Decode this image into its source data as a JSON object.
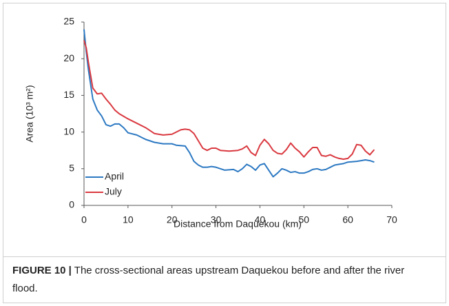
{
  "chart_data": {
    "type": "line",
    "x_label": "Distance from Daquekou (km)",
    "y_label": "Area (10³ m²)",
    "xlim": [
      0,
      70
    ],
    "xticks": [
      0,
      10,
      20,
      30,
      40,
      50,
      60,
      70
    ],
    "ylim": [
      0,
      25
    ],
    "yticks": [
      0,
      5,
      10,
      15,
      20,
      25
    ],
    "grid": false,
    "legend": "lower-left",
    "series": [
      {
        "name": "April",
        "color": "#2b78c2",
        "x": [
          0,
          0.5,
          1,
          2,
          3,
          4,
          5,
          6,
          7,
          8,
          9,
          10,
          12,
          14,
          16,
          18,
          20,
          21,
          23,
          24,
          25,
          26,
          27,
          28,
          29,
          30,
          32,
          34,
          35,
          36,
          37,
          38,
          39,
          40,
          41,
          42,
          43,
          44,
          45,
          46,
          47,
          48,
          49,
          50,
          51,
          52,
          53,
          54,
          55,
          56,
          57,
          58,
          59,
          60,
          62,
          63,
          64,
          65,
          66
        ],
        "values": [
          24,
          21,
          18.5,
          14.5,
          13,
          12.2,
          11,
          10.8,
          11.1,
          11.1,
          10.6,
          9.9,
          9.6,
          9.0,
          8.6,
          8.4,
          8.4,
          8.2,
          8.1,
          7.2,
          6,
          5.5,
          5.2,
          5.2,
          5.3,
          5.2,
          4.8,
          4.9,
          4.6,
          5.0,
          5.6,
          5.3,
          4.8,
          5.5,
          5.7,
          4.8,
          3.9,
          4.4,
          5.0,
          4.8,
          4.5,
          4.6,
          4.4,
          4.4,
          4.6,
          4.9,
          5.0,
          4.8,
          4.9,
          5.2,
          5.5,
          5.6,
          5.7,
          5.9,
          6.0,
          6.1,
          6.2,
          6.1,
          5.9
        ]
      },
      {
        "name": "July",
        "color": "#d9383f",
        "x": [
          0,
          0.5,
          1,
          2,
          3,
          4,
          5,
          6,
          7,
          8,
          10,
          12,
          14,
          16,
          18,
          20,
          22,
          23,
          24,
          25,
          26,
          27,
          28,
          29,
          30,
          31,
          33,
          35,
          36,
          37,
          38,
          39,
          40,
          41,
          42,
          43,
          44,
          45,
          46,
          47,
          48,
          49,
          50,
          51,
          52,
          53,
          54,
          55,
          56,
          57,
          58,
          59,
          60,
          61,
          62,
          63,
          64,
          65,
          66
        ],
        "values": [
          22.5,
          21.5,
          19.5,
          16,
          15.2,
          15.3,
          14.5,
          13.8,
          13,
          12.5,
          11.8,
          11.2,
          10.6,
          9.8,
          9.6,
          9.7,
          10.3,
          10.4,
          10.3,
          9.8,
          8.8,
          7.8,
          7.5,
          7.8,
          7.8,
          7.5,
          7.4,
          7.5,
          7.7,
          8.1,
          7.2,
          6.8,
          8.2,
          9.0,
          8.4,
          7.5,
          7.1,
          7.0,
          7.6,
          8.5,
          7.8,
          7.3,
          6.6,
          7.3,
          7.9,
          7.9,
          6.8,
          6.7,
          6.9,
          6.6,
          6.4,
          6.3,
          6.4,
          7.0,
          8.3,
          8.2,
          7.4,
          6.9,
          7.6
        ]
      }
    ],
    "caption_label": "FIGURE 10 |",
    "caption_text": "The cross-sectional areas upstream Daquekou before and after the river flood."
  }
}
